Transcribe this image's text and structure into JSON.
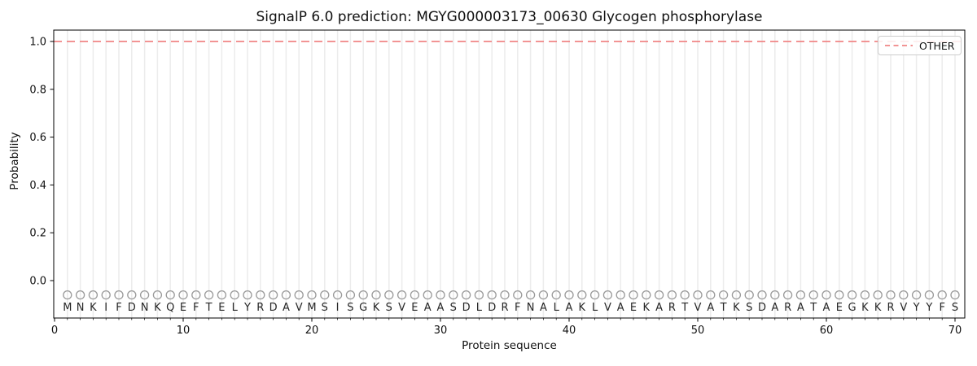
{
  "chart_data": {
    "type": "line",
    "title": "SignalP 6.0 prediction: MGYG000003173_00630 Glycogen phosphorylase",
    "xlabel": "Protein sequence",
    "ylabel": "Probability",
    "xlim": [
      -0.2,
      70.8
    ],
    "ylim": [
      -0.17,
      1.05
    ],
    "x_ticks": [
      0,
      10,
      20,
      30,
      40,
      50,
      60,
      70
    ],
    "y_ticks": [
      0.0,
      0.2,
      0.4,
      0.6,
      0.8,
      1.0
    ],
    "grid": {
      "vertical_per_residue": true,
      "color": "#ececec"
    },
    "legend_position": "upper right",
    "sequence": "MNKIFDNKQEFTELYRDAVMSISGKSVEAASDLDRFNALAKLVAEKARTVATKSDARATAEGKKRVYYFS",
    "sequence_marker": {
      "shape": "open-circle",
      "color": "#9a9a9a",
      "y": -0.06
    },
    "series": [
      {
        "name": "OTHER",
        "color": "#f08585",
        "line_style": "dashed",
        "x": [
          1,
          2,
          3,
          4,
          5,
          6,
          7,
          8,
          9,
          10,
          11,
          12,
          13,
          14,
          15,
          16,
          17,
          18,
          19,
          20,
          21,
          22,
          23,
          24,
          25,
          26,
          27,
          28,
          29,
          30,
          31,
          32,
          33,
          34,
          35,
          36,
          37,
          38,
          39,
          40,
          41,
          42,
          43,
          44,
          45,
          46,
          47,
          48,
          49,
          50,
          51,
          52,
          53,
          54,
          55,
          56,
          57,
          58,
          59,
          60,
          61,
          62,
          63,
          64,
          65,
          66,
          67,
          68,
          69,
          70
        ],
        "values": [
          1.0,
          1.0,
          1.0,
          1.0,
          1.0,
          1.0,
          1.0,
          1.0,
          1.0,
          1.0,
          1.0,
          1.0,
          1.0,
          1.0,
          1.0,
          1.0,
          1.0,
          1.0,
          1.0,
          1.0,
          1.0,
          1.0,
          1.0,
          1.0,
          1.0,
          1.0,
          1.0,
          1.0,
          1.0,
          1.0,
          1.0,
          1.0,
          1.0,
          1.0,
          1.0,
          1.0,
          1.0,
          1.0,
          1.0,
          1.0,
          1.0,
          1.0,
          1.0,
          1.0,
          1.0,
          1.0,
          1.0,
          1.0,
          1.0,
          1.0,
          1.0,
          1.0,
          1.0,
          1.0,
          1.0,
          1.0,
          1.0,
          1.0,
          1.0,
          1.0,
          1.0,
          1.0,
          1.0,
          1.0,
          1.0,
          1.0,
          1.0,
          1.0,
          1.0,
          1.0
        ]
      }
    ],
    "colors": {
      "spine": "#000000",
      "tick_label": "#111111",
      "sequence_letter": "#262626",
      "legend_border": "#cccccc"
    }
  }
}
